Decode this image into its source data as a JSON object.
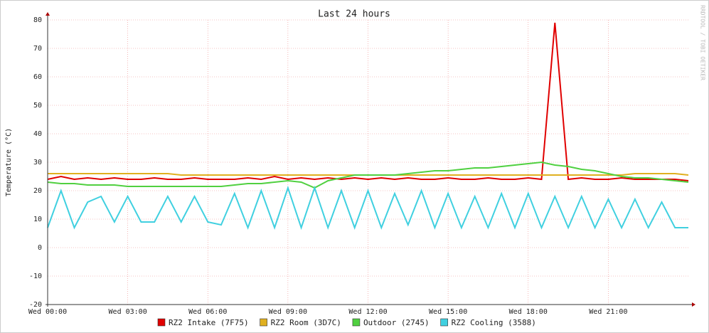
{
  "chart_data": {
    "type": "line",
    "title": "Last 24 hours",
    "y_label": "Temperature (°C)",
    "watermark": "RRDTOOL / TOBI OETIKER",
    "x": [
      0,
      0.5,
      1,
      1.5,
      2,
      2.5,
      3,
      3.5,
      4,
      4.5,
      5,
      5.5,
      6,
      6.5,
      7,
      7.5,
      8,
      8.5,
      9,
      9.5,
      10,
      10.5,
      11,
      11.5,
      12,
      12.5,
      13,
      13.5,
      14,
      14.5,
      15,
      15.5,
      16,
      16.5,
      17,
      17.5,
      18,
      18.5,
      19,
      19.5,
      20,
      20.5,
      21,
      21.5,
      22,
      22.5,
      23,
      23.5,
      24
    ],
    "xlim": [
      0,
      24
    ],
    "xticks": [
      {
        "value": 0,
        "label": "Wed 00:00"
      },
      {
        "value": 3,
        "label": "Wed 03:00"
      },
      {
        "value": 6,
        "label": "Wed 06:00"
      },
      {
        "value": 9,
        "label": "Wed 09:00"
      },
      {
        "value": 12,
        "label": "Wed 12:00"
      },
      {
        "value": 15,
        "label": "Wed 15:00"
      },
      {
        "value": 18,
        "label": "Wed 18:00"
      },
      {
        "value": 21,
        "label": "Wed 21:00"
      }
    ],
    "ylim": [
      -20,
      80
    ],
    "yticks": [
      -20,
      -10,
      0,
      10,
      20,
      30,
      40,
      50,
      60,
      70,
      80
    ],
    "grid": true,
    "series": [
      {
        "name": "RZ2 Intake (7F75)",
        "color": "#e00000",
        "values": [
          24,
          25,
          24,
          24.5,
          24,
          24.5,
          24,
          24,
          24.5,
          24,
          24,
          24.5,
          24,
          24,
          24,
          24.5,
          24,
          25,
          24,
          24.5,
          24,
          24.5,
          24,
          24.5,
          24,
          24.5,
          24,
          24.5,
          24,
          24,
          24.5,
          24,
          24,
          24.5,
          24,
          24,
          24.5,
          24,
          79,
          24,
          24.5,
          24,
          24,
          24.5,
          24,
          24,
          24,
          24,
          23.5
        ]
      },
      {
        "name": "RZ2 Room (3D7C)",
        "color": "#e0b020",
        "values": [
          26,
          26,
          26,
          26,
          26,
          26,
          26,
          26,
          26,
          26,
          25.5,
          25.5,
          25.5,
          25.5,
          25.5,
          25.5,
          25.5,
          25.5,
          25.5,
          25.5,
          25.5,
          25.5,
          25.5,
          25.5,
          25.5,
          25.5,
          25.5,
          25.5,
          25.5,
          25.5,
          25.5,
          25.5,
          25.5,
          25.5,
          25.5,
          25.5,
          25.5,
          25.5,
          25.5,
          25.5,
          25.5,
          25.5,
          25.5,
          25.5,
          26,
          26,
          26,
          26,
          25.5
        ]
      },
      {
        "name": "Outdoor (2745)",
        "color": "#50d040",
        "values": [
          23,
          22.5,
          22.5,
          22,
          22,
          22,
          21.5,
          21.5,
          21.5,
          21.5,
          21.5,
          21.5,
          21.5,
          21.5,
          22,
          22.5,
          22.5,
          23,
          23.5,
          23,
          21,
          23.5,
          24.5,
          25.5,
          25.5,
          25.5,
          25.5,
          26,
          26.5,
          27,
          27,
          27.5,
          28,
          28,
          28.5,
          29,
          29.5,
          30,
          29,
          28.5,
          27.5,
          27,
          26,
          25,
          24.5,
          24.5,
          24,
          23.5,
          23
        ]
      },
      {
        "name": "RZ2 Cooling (3588)",
        "color": "#40d0e0",
        "values": [
          7,
          20,
          7,
          16,
          18,
          9,
          18,
          9,
          9,
          18,
          9,
          18,
          9,
          8,
          19,
          7,
          20,
          7,
          21,
          7,
          21,
          7,
          20,
          7,
          20,
          7,
          19,
          8,
          20,
          7,
          19,
          7,
          18,
          7,
          19,
          7,
          19,
          7,
          18,
          7,
          18,
          7,
          17,
          7,
          17,
          7,
          16,
          7,
          7
        ]
      }
    ]
  }
}
